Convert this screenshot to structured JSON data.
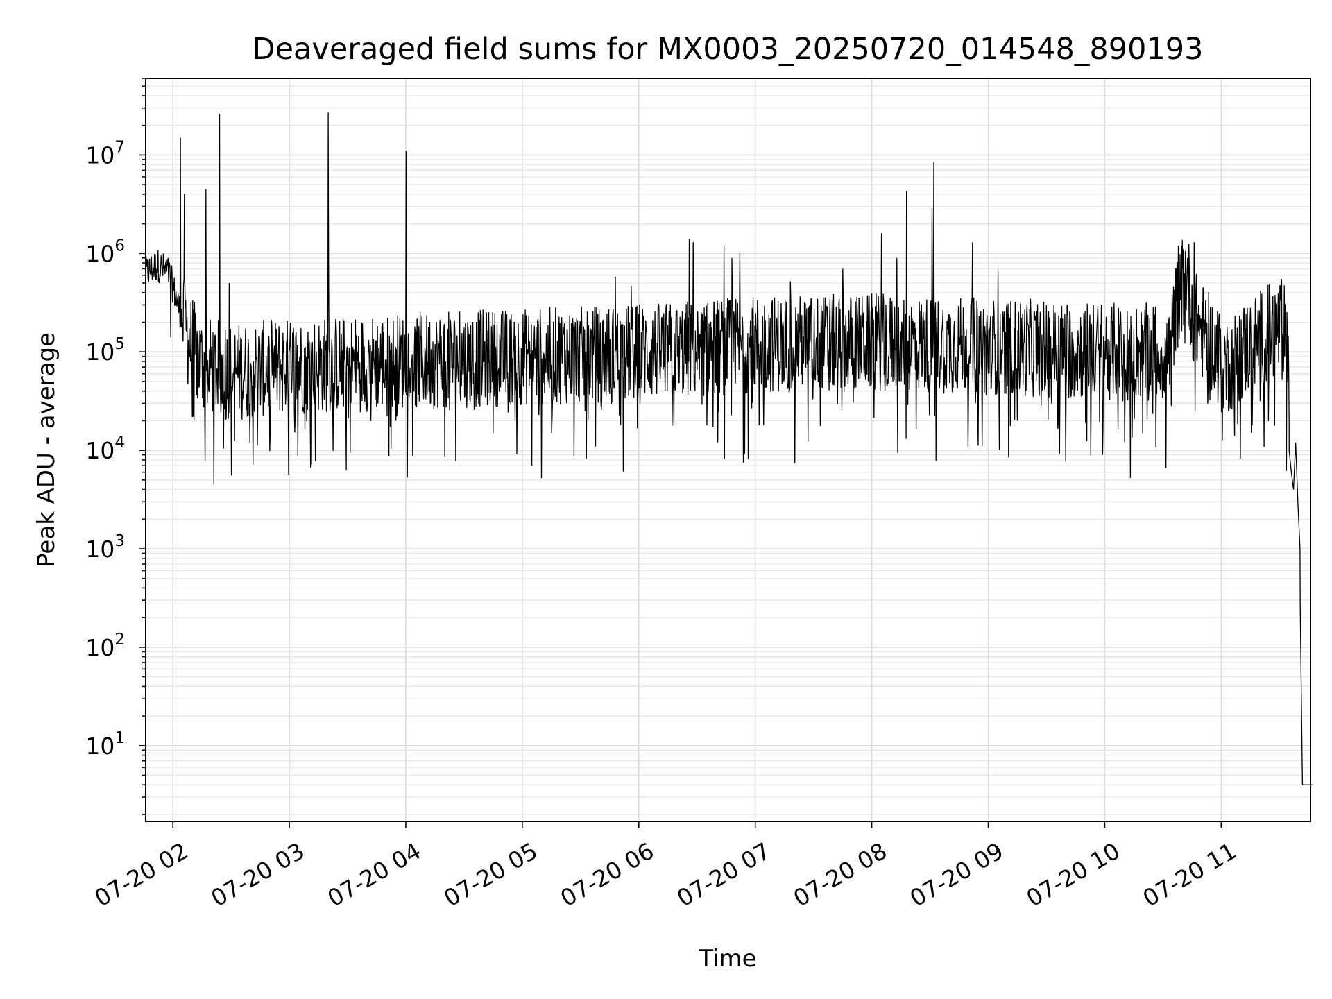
{
  "chart_data": {
    "type": "line",
    "title": "Deaveraged field sums for MX0003_20250720_014548_890193",
    "xlabel": "Time",
    "ylabel": "Peak ADU - average",
    "x_type": "time",
    "x_range": [
      "07-20 01:46",
      "07-20 11:46"
    ],
    "y_scale": "log",
    "ylim": [
      1.7,
      60000000
    ],
    "grid": true,
    "grid_minor_y": true,
    "line_color": "#000000",
    "legend": "none",
    "x_ticks": [
      {
        "value": "07-20 02:00",
        "label": "07-20 02"
      },
      {
        "value": "07-20 03:00",
        "label": "07-20 03"
      },
      {
        "value": "07-20 04:00",
        "label": "07-20 04"
      },
      {
        "value": "07-20 05:00",
        "label": "07-20 05"
      },
      {
        "value": "07-20 06:00",
        "label": "07-20 06"
      },
      {
        "value": "07-20 07:00",
        "label": "07-20 07"
      },
      {
        "value": "07-20 08:00",
        "label": "07-20 08"
      },
      {
        "value": "07-20 09:00",
        "label": "07-20 09"
      },
      {
        "value": "07-20 10:00",
        "label": "07-20 10"
      },
      {
        "value": "07-20 11:00",
        "label": "07-20 11"
      }
    ],
    "y_ticks": [
      {
        "value": 10,
        "base": "10",
        "exp": "1"
      },
      {
        "value": 100,
        "base": "10",
        "exp": "2"
      },
      {
        "value": 1000,
        "base": "10",
        "exp": "3"
      },
      {
        "value": 10000,
        "base": "10",
        "exp": "4"
      },
      {
        "value": 100000,
        "base": "10",
        "exp": "5"
      },
      {
        "value": 1000000,
        "base": "10",
        "exp": "6"
      },
      {
        "value": 10000000,
        "base": "10",
        "exp": "7"
      }
    ],
    "series": [
      {
        "baseline": [
          [
            "07-20 01:46",
            650000
          ],
          [
            "07-20 01:52",
            800000
          ],
          [
            "07-20 01:58",
            650000
          ],
          [
            "07-20 02:03",
            300000
          ],
          [
            "07-20 02:08",
            150000
          ],
          [
            "07-20 02:15",
            85000
          ],
          [
            "07-20 02:30",
            70000
          ],
          [
            "07-20 03:00",
            80000
          ],
          [
            "07-20 03:30",
            85000
          ],
          [
            "07-20 04:00",
            90000
          ],
          [
            "07-20 05:00",
            100000
          ],
          [
            "07-20 06:00",
            110000
          ],
          [
            "07-20 06:30",
            120000
          ],
          [
            "07-20 07:00",
            135000
          ],
          [
            "07-20 08:00",
            140000
          ],
          [
            "07-20 09:00",
            130000
          ],
          [
            "07-20 09:30",
            120000
          ],
          [
            "07-20 10:34",
            110000
          ],
          [
            "07-20 10:37",
            350000
          ],
          [
            "07-20 10:42",
            700000
          ],
          [
            "07-20 10:46",
            250000
          ],
          [
            "07-20 10:55",
            130000
          ],
          [
            "07-20 11:03",
            80000
          ],
          [
            "07-20 11:12",
            120000
          ],
          [
            "07-20 11:25",
            180000
          ],
          [
            "07-20 11:32",
            200000
          ],
          [
            "07-20 11:34",
            120000
          ],
          [
            "07-20 11:35",
            30000
          ]
        ],
        "spikes": [
          [
            "07-20 02:04",
            15000000
          ],
          [
            "07-20 02:06",
            4000000
          ],
          [
            "07-20 02:17",
            4500000
          ],
          [
            "07-20 02:24",
            26000000
          ],
          [
            "07-20 02:29",
            500000
          ],
          [
            "07-20 03:20",
            27000000
          ],
          [
            "07-20 03:20",
            700000
          ],
          [
            "07-20 04:00",
            11000000
          ],
          [
            "07-20 05:48",
            580000
          ],
          [
            "07-20 05:56",
            470000
          ],
          [
            "07-20 06:26",
            1400000
          ],
          [
            "07-20 06:28",
            1300000
          ],
          [
            "07-20 06:44",
            1200000
          ],
          [
            "07-20 06:48",
            900000
          ],
          [
            "07-20 06:52",
            1000000
          ],
          [
            "07-20 07:18",
            520000
          ],
          [
            "07-20 07:45",
            700000
          ],
          [
            "07-20 08:05",
            1600000
          ],
          [
            "07-20 08:13",
            900000
          ],
          [
            "07-20 08:18",
            4300000
          ],
          [
            "07-20 08:31",
            2900000
          ],
          [
            "07-20 08:32",
            8500000
          ],
          [
            "07-20 08:52",
            1300000
          ],
          [
            "07-20 09:05",
            660000
          ],
          [
            "07-20 10:38",
            1200000
          ],
          [
            "07-20 10:46",
            1300000
          ]
        ],
        "dips": [
          [
            "07-20 01:59",
            140000
          ],
          [
            "07-20 02:11",
            20000
          ],
          [
            "07-20 02:50",
            14000
          ],
          [
            "07-20 03:55",
            20000
          ],
          [
            "07-20 04:45",
            15000
          ],
          [
            "07-20 05:15",
            15000
          ],
          [
            "07-20 06:18",
            18000
          ],
          [
            "07-20 06:35",
            18000
          ],
          [
            "07-20 07:02",
            18000
          ],
          [
            "07-20 09:15",
            20000
          ],
          [
            "07-20 09:50",
            19000
          ],
          [
            "07-20 11:07",
            14000
          ],
          [
            "07-20 11:16",
            18000
          ]
        ],
        "tail": [
          [
            "07-20 11:35",
            10000
          ],
          [
            "07-20 11:36",
            6000
          ],
          [
            "07-20 11:37",
            4000
          ],
          [
            "07-20 11:38",
            12000
          ],
          [
            "07-20 11:39",
            3000
          ],
          [
            "07-20 11:40",
            1000
          ],
          [
            "07-20 11:40",
            250
          ],
          [
            "07-20 11:41",
            4
          ],
          [
            "07-20 11:46",
            4
          ]
        ]
      }
    ]
  }
}
